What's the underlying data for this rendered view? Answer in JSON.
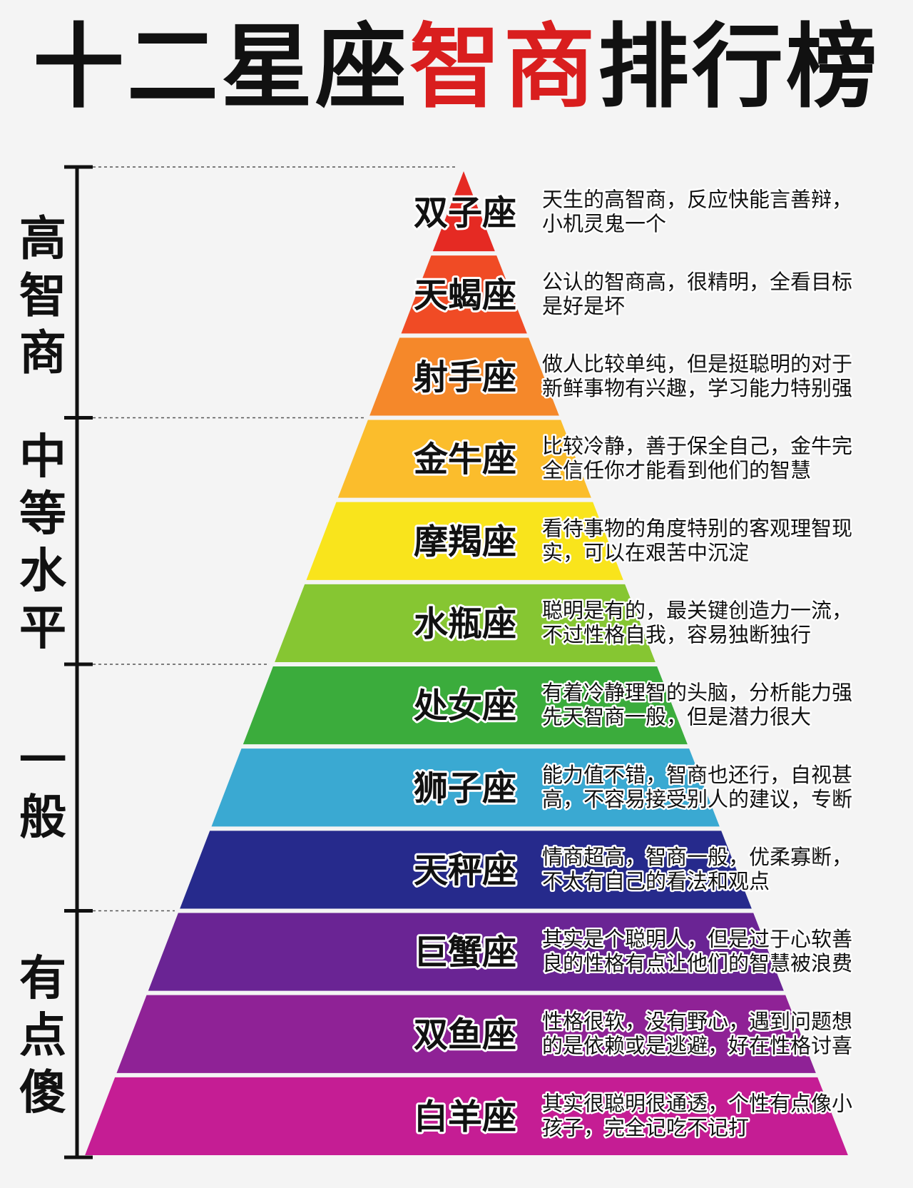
{
  "title": {
    "pre": "十二星座",
    "highlight": "智商",
    "post": "排行榜",
    "highlight_color": "#d91e1e"
  },
  "groups": [
    {
      "label": [
        "高",
        "智",
        "商"
      ],
      "from": 0,
      "to": 3
    },
    {
      "label": [
        "中",
        "等",
        "水",
        "平"
      ],
      "from": 3,
      "to": 6
    },
    {
      "label": [
        "一",
        "般"
      ],
      "from": 6,
      "to": 9
    },
    {
      "label": [
        "有",
        "点",
        "傻"
      ],
      "from": 9,
      "to": 12
    }
  ],
  "levels": [
    {
      "name": "双子座",
      "color": "#e52a23",
      "desc": [
        "天生的高智商，反应快能言善辩，",
        "小机灵鬼一个"
      ]
    },
    {
      "name": "天蝎座",
      "color": "#f04b25",
      "desc": [
        "公认的智商高，很精明，全看目标",
        "是好是坏"
      ]
    },
    {
      "name": "射手座",
      "color": "#f5882a",
      "desc": [
        "做人比较单纯，但是挺聪明的对于",
        "新鲜事物有兴趣，学习能力特别强"
      ]
    },
    {
      "name": "金牛座",
      "color": "#fbbd2c",
      "desc": [
        "比较冷静，善于保全自己，金牛完",
        "全信任你才能看到他们的智慧"
      ]
    },
    {
      "name": "摩羯座",
      "color": "#f9e41c",
      "desc": [
        "看待事物的角度特别的客观理智现",
        "实，可以在艰苦中沉淀"
      ]
    },
    {
      "name": "水瓶座",
      "color": "#86c632",
      "desc": [
        "聪明是有的，最关键创造力一流，",
        "不过性格自我，容易独断独行"
      ]
    },
    {
      "name": "处女座",
      "color": "#3bac3c",
      "desc": [
        "有着冷静理智的头脑，分析能力强",
        "先天智商一般，但是潜力很大"
      ]
    },
    {
      "name": "狮子座",
      "color": "#3aa9d2",
      "desc": [
        "能力值不错，智商也还行，自视甚",
        "高，不容易接受别人的建议，专断"
      ]
    },
    {
      "name": "天秤座",
      "color": "#262a8c",
      "desc": [
        "情商超高，智商一般，优柔寡断，",
        "不太有自己的看法和观点"
      ]
    },
    {
      "name": "巨蟹座",
      "color": "#6a2494",
      "desc": [
        "其实是个聪明人，但是过于心软善",
        "良的性格有点让他们的智慧被浪费"
      ]
    },
    {
      "name": "双鱼座",
      "color": "#8f2296",
      "desc": [
        "性格很软，没有野心，遇到问题想",
        "的是依赖或是逃避，好在性格讨喜"
      ]
    },
    {
      "name": "白羊座",
      "color": "#c51d94",
      "desc": [
        "其实很聪明很通透，个性有点像小",
        "孩子，完全记吃不记打"
      ]
    }
  ]
}
